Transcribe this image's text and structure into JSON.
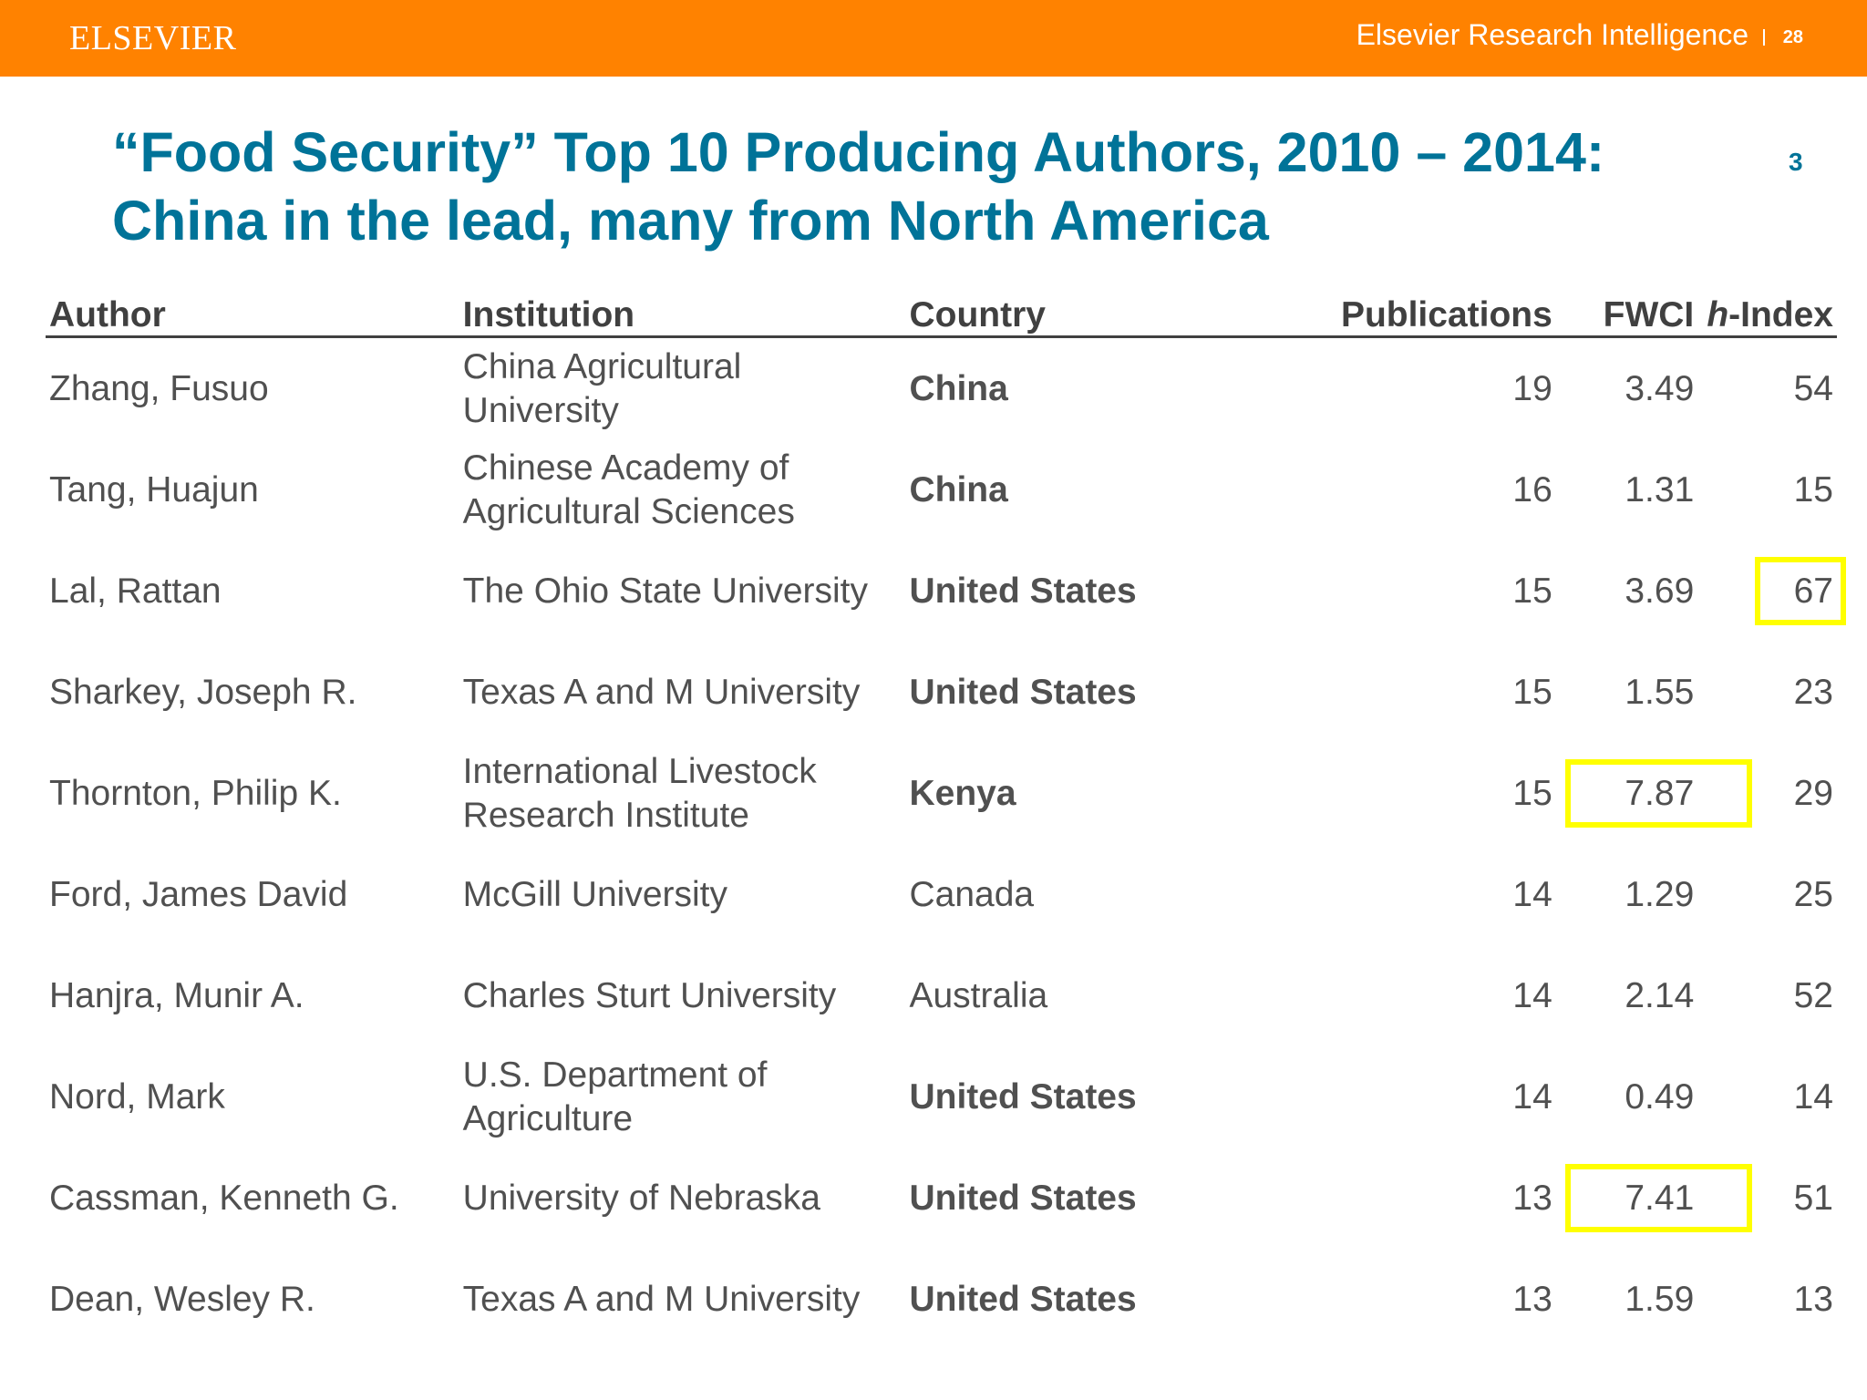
{
  "header": {
    "logo": "ELSEVIER",
    "brand": "Elsevier Research Intelligence",
    "separator": "|",
    "page_number": "28",
    "color": "#ff8200"
  },
  "title": {
    "line1": "“Food Security” Top 10 Producing Authors, 2010 – 2014:",
    "line2": "China in the lead, many from North America",
    "color": "#007398"
  },
  "slide_number": "3",
  "table": {
    "headers": {
      "author": "Author",
      "institution": "Institution",
      "country": "Country",
      "publications": "Publications",
      "fwci": "FWCI",
      "h_italic": "h",
      "h_rest": "-Index"
    },
    "rows": [
      {
        "author": "Zhang, Fusuo",
        "institution_lines": [
          "China Agricultural",
          "University"
        ],
        "country": "China",
        "country_bold": true,
        "publications": "19",
        "fwci": "3.49",
        "h_index": "54"
      },
      {
        "author": "Tang, Huajun",
        "institution_lines": [
          "Chinese Academy of",
          "Agricultural Sciences"
        ],
        "country": "China",
        "country_bold": true,
        "publications": "16",
        "fwci": "1.31",
        "h_index": "15"
      },
      {
        "author": "Lal, Rattan",
        "institution_lines": [
          "The Ohio State University"
        ],
        "country": "United States",
        "country_bold": true,
        "publications": "15",
        "fwci": "3.69",
        "h_index": "67"
      },
      {
        "author": "Sharkey, Joseph R.",
        "institution_lines": [
          "Texas A and M University"
        ],
        "country": "United States",
        "country_bold": true,
        "publications": "15",
        "fwci": "1.55",
        "h_index": "23"
      },
      {
        "author": "Thornton, Philip K.",
        "institution_lines": [
          "International Livestock",
          "Research Institute"
        ],
        "country": "Kenya",
        "country_bold": true,
        "publications": "15",
        "fwci": "7.87",
        "h_index": "29"
      },
      {
        "author": "Ford, James David",
        "institution_lines": [
          "McGill University"
        ],
        "country": "Canada",
        "country_bold": false,
        "publications": "14",
        "fwci": "1.29",
        "h_index": "25"
      },
      {
        "author": "Hanjra, Munir A.",
        "institution_lines": [
          "Charles Sturt University"
        ],
        "country": "Australia",
        "country_bold": false,
        "publications": "14",
        "fwci": "2.14",
        "h_index": "52"
      },
      {
        "author": "Nord, Mark",
        "institution_lines": [
          "U.S. Department of",
          "Agriculture"
        ],
        "country": "United States",
        "country_bold": true,
        "publications": "14",
        "fwci": "0.49",
        "h_index": "14"
      },
      {
        "author": "Cassman, Kenneth G.",
        "institution_lines": [
          "University of Nebraska"
        ],
        "country": "United States",
        "country_bold": true,
        "publications": "13",
        "fwci": "7.41",
        "h_index": "51"
      },
      {
        "author": "Dean, Wesley R.",
        "institution_lines": [
          "Texas A and M University"
        ],
        "country": "United States",
        "country_bold": true,
        "publications": "13",
        "fwci": "1.59",
        "h_index": "13"
      }
    ]
  },
  "highlights": [
    {
      "row": 2,
      "column": "h_index"
    },
    {
      "row": 4,
      "column": "fwci"
    },
    {
      "row": 8,
      "column": "fwci"
    }
  ],
  "highlight_color": "#ffff00"
}
